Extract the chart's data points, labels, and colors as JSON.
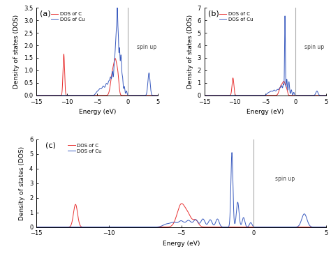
{
  "xlim": [
    -15,
    5
  ],
  "xlabel": "Energy (eV)",
  "ylabel": "Density of states (DOS)",
  "vline_x": 0,
  "spin_up_text": "spin up",
  "legend_C": "DOS of C",
  "legend_Cu": "DOS of Cu",
  "color_C": "#e83030",
  "color_Cu": "#3a5bbf",
  "vline_color": "#aaaaaa",
  "panels": [
    "(a)",
    "(b)",
    "(c)"
  ],
  "ylims": [
    3.5,
    7,
    6
  ],
  "yticks_a": [
    0,
    0.5,
    1.0,
    1.5,
    2.0,
    2.5,
    3.0,
    3.5
  ],
  "yticks_b": [
    0,
    1,
    2,
    3,
    4,
    5,
    6,
    7
  ],
  "yticks_c": [
    0,
    1,
    2,
    3,
    4,
    5,
    6
  ]
}
